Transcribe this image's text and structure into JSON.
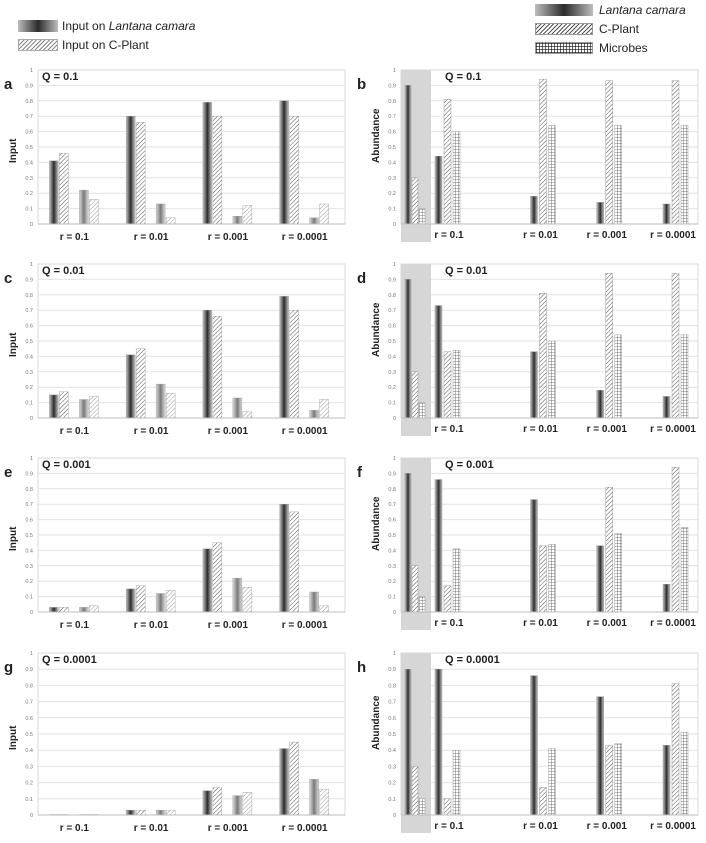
{
  "legend_input": {
    "lantana": {
      "prefix": "Input on ",
      "species": "Lantana camara"
    },
    "cplant": "Input on C-Plant"
  },
  "legend_abundance": {
    "lantana": "Lantana camara",
    "cplant": "C-Plant",
    "microbes": "Microbes"
  },
  "axis": {
    "input_label": "Input",
    "abundance_label": "Abundance",
    "ticks": [
      "0",
      "0.1",
      "0.2",
      "0.3",
      "0.4",
      "0.5",
      "0.6",
      "0.7",
      "0.8",
      "0.9",
      "1"
    ]
  },
  "colors": {
    "lantana_dark": "#2b2b2b",
    "lantana_light": "#c4c4c4",
    "hatch": "#555555",
    "grid": "#e2e2e2",
    "highlight": "#d6d6d6"
  },
  "chart_data": [
    {
      "id": "a",
      "letter": "a",
      "type": "bar",
      "title": "Q = 0.1",
      "ylabel": "Input",
      "ylim": [
        0,
        1
      ],
      "categories": [
        "r = 0.1",
        "r = 0.01",
        "r = 0.001",
        "r = 0.0001"
      ],
      "groups": [
        [
          {
            "name": "Input on Lantana camara",
            "values": [
              0.41,
              0.46
            ]
          },
          {
            "name": "Input on C-Plant",
            "values": [
              0.22,
              0.16
            ]
          }
        ],
        [
          {
            "name": "Input on Lantana camara",
            "values": [
              0.7,
              0.66
            ]
          },
          {
            "name": "Input on C-Plant",
            "values": [
              0.13,
              0.04
            ]
          }
        ],
        [
          {
            "name": "Input on Lantana camara",
            "values": [
              0.79,
              0.7
            ]
          },
          {
            "name": "Input on C-Plant",
            "values": [
              0.05,
              0.12
            ]
          }
        ],
        [
          {
            "name": "Input on Lantana camara",
            "values": [
              0.8,
              0.7
            ]
          },
          {
            "name": "Input on C-Plant",
            "values": [
              0.04,
              0.13
            ]
          }
        ]
      ]
    },
    {
      "id": "b",
      "letter": "b",
      "type": "bar",
      "title": "Q = 0.1",
      "ylabel": "Abundance",
      "ylim": [
        0,
        1
      ],
      "categories": [
        "r = 0.1",
        "r = 0.01",
        "r = 0.001",
        "r = 0.0001"
      ],
      "initial": {
        "lantana": 0.9,
        "cplant": 0.3,
        "microbes": 0.1
      },
      "series": [
        {
          "name": "Lantana camara",
          "values": [
            0.44,
            0.18,
            0.14,
            0.13
          ]
        },
        {
          "name": "C-Plant",
          "values": [
            0.81,
            0.94,
            0.93,
            0.93
          ]
        },
        {
          "name": "Microbes",
          "values": [
            0.6,
            0.64,
            0.64,
            0.64
          ]
        }
      ]
    },
    {
      "id": "c",
      "letter": "c",
      "type": "bar",
      "title": "Q = 0.01",
      "ylabel": "Input",
      "ylim": [
        0,
        1
      ],
      "categories": [
        "r = 0.1",
        "r = 0.01",
        "r = 0.001",
        "r = 0.0001"
      ],
      "groups": [
        [
          {
            "name": "Input on Lantana camara",
            "values": [
              0.15,
              0.17
            ]
          },
          {
            "name": "Input on C-Plant",
            "values": [
              0.12,
              0.14
            ]
          }
        ],
        [
          {
            "name": "Input on Lantana camara",
            "values": [
              0.41,
              0.45
            ]
          },
          {
            "name": "Input on C-Plant",
            "values": [
              0.22,
              0.16
            ]
          }
        ],
        [
          {
            "name": "Input on Lantana camara",
            "values": [
              0.7,
              0.66
            ]
          },
          {
            "name": "Input on C-Plant",
            "values": [
              0.13,
              0.04
            ]
          }
        ],
        [
          {
            "name": "Input on Lantana camara",
            "values": [
              0.79,
              0.7
            ]
          },
          {
            "name": "Input on C-Plant",
            "values": [
              0.05,
              0.12
            ]
          }
        ]
      ]
    },
    {
      "id": "d",
      "letter": "d",
      "type": "bar",
      "title": "Q = 0.01",
      "ylabel": "Abundance",
      "ylim": [
        0,
        1
      ],
      "categories": [
        "r = 0.1",
        "r = 0.01",
        "r = 0.001",
        "r = 0.0001"
      ],
      "initial": {
        "lantana": 0.9,
        "cplant": 0.3,
        "microbes": 0.1
      },
      "series": [
        {
          "name": "Lantana camara",
          "values": [
            0.73,
            0.43,
            0.18,
            0.14
          ]
        },
        {
          "name": "C-Plant",
          "values": [
            0.43,
            0.81,
            0.94,
            0.94
          ]
        },
        {
          "name": "Microbes",
          "values": [
            0.44,
            0.5,
            0.54,
            0.54
          ]
        }
      ]
    },
    {
      "id": "e",
      "letter": "e",
      "type": "bar",
      "title": "Q = 0.001",
      "ylabel": "Input",
      "ylim": [
        0,
        1
      ],
      "categories": [
        "r = 0.1",
        "r = 0.01",
        "r = 0.001",
        "r = 0.0001"
      ],
      "groups": [
        [
          {
            "name": "Input on Lantana camara",
            "values": [
              0.03,
              0.03
            ]
          },
          {
            "name": "Input on C-Plant",
            "values": [
              0.03,
              0.04
            ]
          }
        ],
        [
          {
            "name": "Input on Lantana camara",
            "values": [
              0.15,
              0.17
            ]
          },
          {
            "name": "Input on C-Plant",
            "values": [
              0.12,
              0.14
            ]
          }
        ],
        [
          {
            "name": "Input on Lantana camara",
            "values": [
              0.41,
              0.45
            ]
          },
          {
            "name": "Input on C-Plant",
            "values": [
              0.22,
              0.16
            ]
          }
        ],
        [
          {
            "name": "Input on Lantana camara",
            "values": [
              0.7,
              0.65
            ]
          },
          {
            "name": "Input on C-Plant",
            "values": [
              0.13,
              0.04
            ]
          }
        ]
      ]
    },
    {
      "id": "f",
      "letter": "f",
      "type": "bar",
      "title": "Q = 0.001",
      "ylabel": "Abundance",
      "ylim": [
        0,
        1
      ],
      "categories": [
        "r = 0.1",
        "r = 0.01",
        "r = 0.001",
        "r = 0.0001"
      ],
      "initial": {
        "lantana": 0.9,
        "cplant": 0.3,
        "microbes": 0.1
      },
      "series": [
        {
          "name": "Lantana camara",
          "values": [
            0.86,
            0.73,
            0.43,
            0.18
          ]
        },
        {
          "name": "C-Plant",
          "values": [
            0.17,
            0.43,
            0.81,
            0.94
          ]
        },
        {
          "name": "Microbes",
          "values": [
            0.41,
            0.44,
            0.51,
            0.55
          ]
        }
      ]
    },
    {
      "id": "g",
      "letter": "g",
      "type": "bar",
      "title": "Q = 0.0001",
      "ylabel": "Input",
      "ylim": [
        0,
        1
      ],
      "categories": [
        "r = 0.1",
        "r = 0.01",
        "r = 0.001",
        "r = 0.0001"
      ],
      "groups": [
        [
          {
            "name": "Input on Lantana camara",
            "values": [
              0.003,
              0.003
            ]
          },
          {
            "name": "Input on C-Plant",
            "values": [
              0.003,
              0.003
            ]
          }
        ],
        [
          {
            "name": "Input on Lantana camara",
            "values": [
              0.03,
              0.03
            ]
          },
          {
            "name": "Input on C-Plant",
            "values": [
              0.03,
              0.03
            ]
          }
        ],
        [
          {
            "name": "Input on Lantana camara",
            "values": [
              0.15,
              0.17
            ]
          },
          {
            "name": "Input on C-Plant",
            "values": [
              0.12,
              0.14
            ]
          }
        ],
        [
          {
            "name": "Input on Lantana camara",
            "values": [
              0.41,
              0.45
            ]
          },
          {
            "name": "Input on C-Plant",
            "values": [
              0.22,
              0.16
            ]
          }
        ]
      ]
    },
    {
      "id": "h",
      "letter": "h",
      "type": "bar",
      "title": "Q = 0.0001",
      "ylabel": "Abundance",
      "ylim": [
        0,
        1
      ],
      "categories": [
        "r = 0.1",
        "r = 0.01",
        "r = 0.001",
        "r = 0.0001"
      ],
      "initial": {
        "lantana": 0.9,
        "cplant": 0.3,
        "microbes": 0.1
      },
      "series": [
        {
          "name": "Lantana camara",
          "values": [
            0.9,
            0.86,
            0.73,
            0.43
          ]
        },
        {
          "name": "C-Plant",
          "values": [
            0.1,
            0.17,
            0.43,
            0.81
          ]
        },
        {
          "name": "Microbes",
          "values": [
            0.4,
            0.41,
            0.44,
            0.51
          ]
        }
      ]
    }
  ]
}
